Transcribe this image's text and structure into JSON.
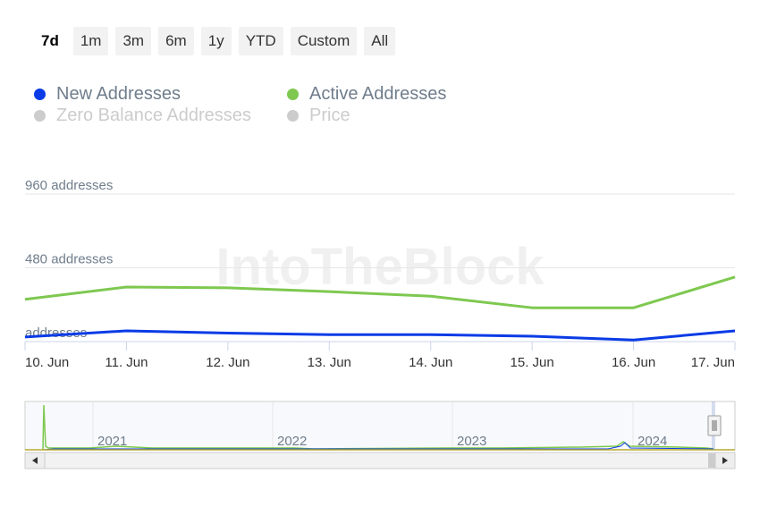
{
  "range_selector": {
    "buttons": [
      "7d",
      "1m",
      "3m",
      "6m",
      "1y",
      "YTD",
      "Custom",
      "All"
    ],
    "selected": "7d"
  },
  "legend": [
    {
      "label": "New Addresses",
      "color": "#0a3be6",
      "visible": true
    },
    {
      "label": "Active Addresses",
      "color": "#7ec850",
      "visible": true
    },
    {
      "label": "Zero Balance Addresses",
      "color": "#cccccc",
      "visible": false
    },
    {
      "label": "Price",
      "color": "#cccccc",
      "visible": false
    }
  ],
  "watermark": "IntoTheBlock",
  "chart_data": {
    "type": "line",
    "x": [
      "10. Jun",
      "11. Jun",
      "12. Jun",
      "13. Jun",
      "14. Jun",
      "15. Jun",
      "16. Jun",
      "17. Jun"
    ],
    "y_ticks": [
      {
        "value": 0,
        "label": "addresses"
      },
      {
        "value": 480,
        "label": "480 addresses"
      },
      {
        "value": 960,
        "label": "960 addresses"
      }
    ],
    "ylim": [
      0,
      960
    ],
    "series": [
      {
        "name": "New Addresses",
        "color": "#0a3be6",
        "values": [
          30,
          70,
          55,
          45,
          45,
          35,
          10,
          70
        ]
      },
      {
        "name": "Active Addresses",
        "color": "#7ec850",
        "values": [
          275,
          355,
          350,
          325,
          295,
          220,
          220,
          420
        ]
      }
    ],
    "grid": true,
    "legend_position": "top-left"
  },
  "navigator": {
    "year_labels": [
      "2021",
      "2022",
      "2023",
      "2024"
    ]
  },
  "colors": {
    "new": "#0a3be6",
    "active": "#7ec850",
    "grid": "#e6e6e6",
    "axis_text": "#6f7d8c"
  }
}
